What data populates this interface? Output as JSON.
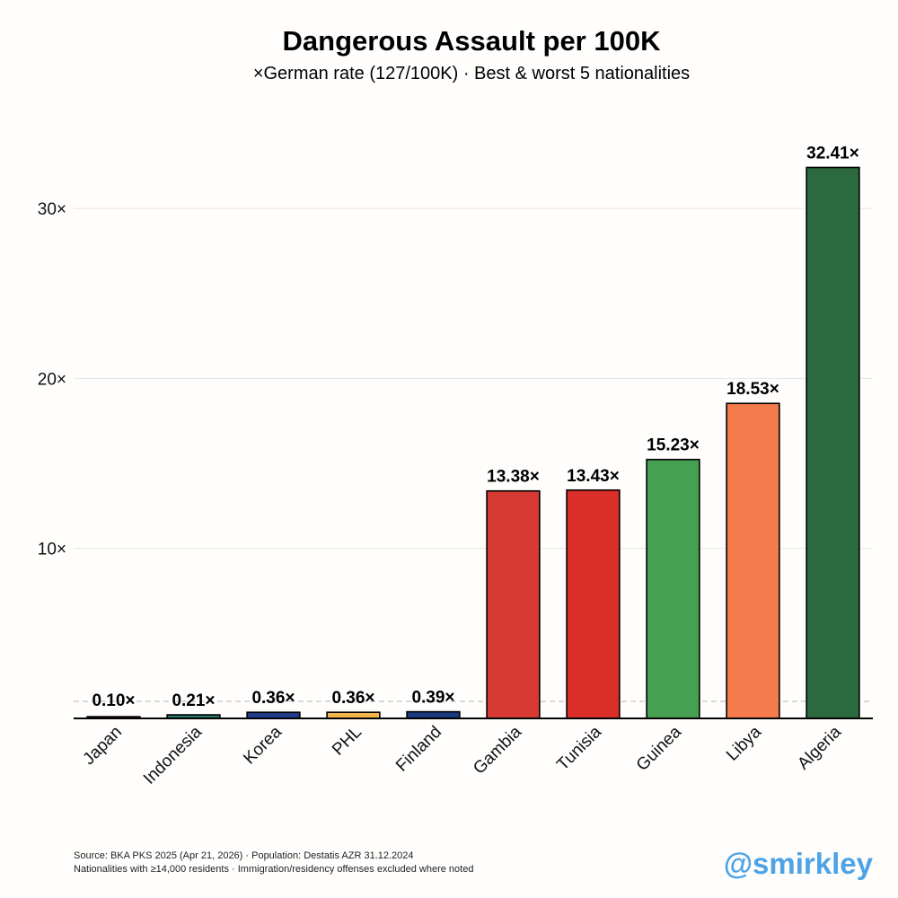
{
  "header": {
    "title": "Dangerous Assault per 100K",
    "subtitle": "×German rate (127/100K) · Best & worst 5 nationalities"
  },
  "chart_data": {
    "type": "bar",
    "title": "Dangerous Assault per 100K",
    "subtitle": "×German rate (127/100K) · Best & worst 5 nationalities",
    "xlabel": "",
    "ylabel": "",
    "ylim": [
      0,
      34
    ],
    "yticks": [
      10,
      20,
      30
    ],
    "ytick_labels": [
      "10×",
      "20×",
      "30×"
    ],
    "grid": true,
    "reference_line": 1.0,
    "categories": [
      "Japan",
      "Indonesia",
      "Korea",
      "PHL",
      "Finland",
      "Gambia",
      "Tunisia",
      "Guinea",
      "Libya",
      "Algeria"
    ],
    "values": [
      0.1,
      0.21,
      0.36,
      0.36,
      0.39,
      13.38,
      13.43,
      15.23,
      18.53,
      32.41
    ],
    "value_labels": [
      "0.10×",
      "0.21×",
      "0.36×",
      "0.36×",
      "0.39×",
      "13.38×",
      "13.43×",
      "15.23×",
      "18.53×",
      "32.41×"
    ],
    "colors": [
      "#b0101c",
      "#2b7a6e",
      "#1f3b8a",
      "#f2b84b",
      "#1a3a80",
      "#d63a32",
      "#dc2e28",
      "#45a052",
      "#f47b4b",
      "#2a6a3e"
    ]
  },
  "footer": {
    "source_line1": "Source: BKA PKS 2025 (Apr 21, 2026) · Population: Destatis AZR 31.12.2024",
    "source_line2": "Nationalities with ≥14,000 residents · Immigration/residency offenses excluded where noted",
    "handle": "@smirkley"
  }
}
